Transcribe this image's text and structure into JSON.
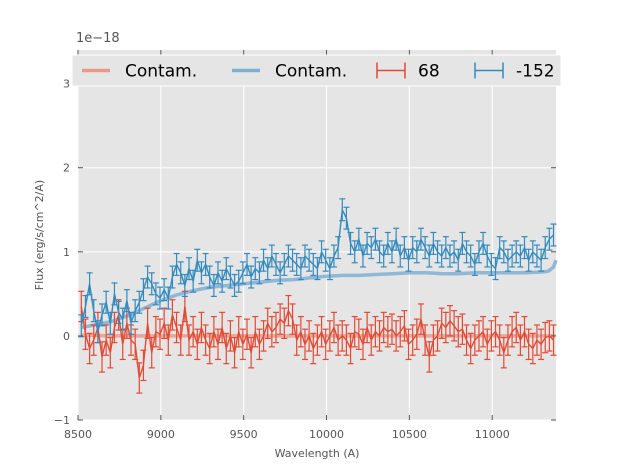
{
  "chart_data": {
    "type": "line",
    "title": "",
    "xlabel": "Wavelength (A)",
    "ylabel": "Flux (erg/s/cm^2/A)",
    "y_offset_label": "1e−18",
    "xlim": [
      8500,
      11385
    ],
    "ylim": [
      -1,
      3.4
    ],
    "xticks": [
      8500,
      9000,
      9500,
      10000,
      10500,
      11000
    ],
    "xtick_labels": [
      "8500",
      "9000",
      "9500",
      "10000",
      "10500",
      "11000"
    ],
    "yticks": [
      -1,
      0,
      1,
      2,
      3
    ],
    "ytick_labels": [
      "−1",
      "0",
      "1",
      "2",
      "3"
    ],
    "grid": true,
    "legend": {
      "placement": "top",
      "entries": [
        {
          "label": "Contam.",
          "kind": "line",
          "color": "#e8998d"
        },
        {
          "label": "Contam.",
          "kind": "line",
          "color": "#7fb0d4"
        },
        {
          "label": "68",
          "kind": "errorbar",
          "color": "#e24a33"
        },
        {
          "label": "-152",
          "kind": "errorbar",
          "color": "#348abd"
        }
      ]
    },
    "colors": {
      "red": "#e24a33",
      "blue": "#348abd",
      "red_contam": "#e8998d",
      "blue_contam": "#7fb0d4",
      "axes_bg": "#e5e5e5",
      "grid": "#ffffff"
    },
    "x": [
      8520,
      8545,
      8570,
      8595,
      8620,
      8645,
      8670,
      8695,
      8720,
      8745,
      8770,
      8795,
      8820,
      8845,
      8870,
      8895,
      8920,
      8945,
      8970,
      8995,
      9020,
      9045,
      9070,
      9095,
      9120,
      9145,
      9170,
      9195,
      9220,
      9245,
      9270,
      9295,
      9320,
      9345,
      9370,
      9395,
      9420,
      9445,
      9470,
      9495,
      9520,
      9545,
      9570,
      9595,
      9620,
      9645,
      9670,
      9695,
      9720,
      9745,
      9770,
      9795,
      9820,
      9845,
      9870,
      9895,
      9920,
      9945,
      9970,
      9995,
      10020,
      10045,
      10070,
      10095,
      10120,
      10145,
      10170,
      10195,
      10220,
      10245,
      10270,
      10295,
      10320,
      10345,
      10370,
      10395,
      10420,
      10445,
      10470,
      10495,
      10520,
      10545,
      10570,
      10595,
      10620,
      10645,
      10670,
      10695,
      10720,
      10745,
      10770,
      10795,
      10820,
      10845,
      10870,
      10895,
      10920,
      10945,
      10970,
      10995,
      11020,
      11045,
      11070,
      11095,
      11120,
      11145,
      11170,
      11195,
      11220,
      11245,
      11270,
      11295,
      11320,
      11345,
      11370
    ],
    "series": [
      {
        "name": "68",
        "kind": "errorbar",
        "color": "#e24a33",
        "y": [
          0.35,
          0.02,
          -0.15,
          -0.05,
          0.1,
          -0.25,
          -0.05,
          -0.2,
          0.1,
          0.25,
          -0.1,
          0.15,
          -0.05,
          -0.1,
          -0.5,
          -0.35,
          0.15,
          -0.2,
          0.05,
          0.02,
          0.15,
          -0.05,
          0.25,
          0.1,
          -0.05,
          0.35,
          -0.05,
          0.05,
          -0.1,
          0.1,
          -0.05,
          -0.15,
          0.05,
          -0.1,
          0.1,
          -0.15,
          0.0,
          -0.2,
          0.05,
          -0.1,
          0.02,
          -0.2,
          0.05,
          -0.1,
          0.0,
          0.15,
          0.05,
          0.1,
          0.2,
          0.15,
          0.3,
          0.2,
          -0.05,
          0.05,
          -0.1,
          0.0,
          -0.15,
          -0.05,
          0.05,
          -0.1,
          0.0,
          0.1,
          -0.05,
          0.0,
          -0.05,
          -0.15,
          0.05,
          0.02,
          -0.1,
          0.1,
          -0.05,
          0.05,
          0.0,
          0.1,
          0.05,
          0.08,
          0.0,
          0.05,
          0.12,
          -0.1,
          -0.05,
          0.02,
          0.2,
          -0.05,
          -0.25,
          -0.05,
          0.0,
          0.15,
          0.1,
          0.18,
          0.12,
          0.05,
          0.08,
          -0.05,
          -0.15,
          -0.05,
          0.0,
          0.05,
          -0.1,
          0.0,
          0.05,
          -0.05,
          -0.2,
          -0.05,
          0.05,
          0.1,
          -0.05,
          0.05,
          -0.1,
          -0.15,
          -0.05,
          -0.1,
          -0.02,
          0.0,
          -0.05
        ],
        "yerr": 0.18
      },
      {
        "name": "-152",
        "kind": "errorbar",
        "color": "#348abd",
        "y": [
          0.12,
          0.35,
          0.62,
          0.3,
          0.05,
          0.25,
          0.4,
          0.15,
          0.5,
          0.28,
          0.2,
          0.42,
          0.15,
          0.3,
          0.4,
          0.55,
          0.7,
          0.62,
          0.5,
          0.45,
          0.55,
          0.45,
          0.7,
          0.85,
          0.75,
          0.6,
          0.8,
          0.65,
          0.9,
          0.75,
          0.85,
          0.7,
          0.6,
          0.75,
          0.65,
          0.8,
          0.7,
          0.6,
          0.65,
          0.75,
          0.85,
          0.7,
          0.8,
          0.75,
          0.9,
          0.8,
          0.95,
          0.85,
          0.75,
          0.85,
          0.95,
          0.9,
          0.85,
          0.8,
          0.95,
          0.9,
          0.85,
          0.8,
          1.0,
          0.9,
          0.8,
          0.95,
          1.05,
          1.5,
          1.4,
          1.1,
          1.0,
          1.15,
          0.95,
          1.1,
          1.05,
          1.15,
          1.0,
          0.95,
          1.1,
          1.0,
          1.15,
          0.95,
          1.05,
          0.9,
          1.05,
          1.0,
          1.15,
          1.05,
          0.95,
          1.1,
          1.0,
          0.95,
          1.05,
          0.95,
          1.0,
          0.9,
          1.1,
          1.0,
          0.95,
          0.85,
          1.0,
          1.1,
          0.95,
          0.85,
          0.8,
          1.05,
          1.0,
          0.9,
          0.95,
          1.0,
          0.95,
          1.05,
          0.9,
          1.0,
          0.95,
          0.9,
          1.05,
          1.15,
          1.2
        ],
        "yerr": 0.13
      },
      {
        "name": "Contam.",
        "kind": "line",
        "color": "#e8998d",
        "x": [
          8520,
          8700,
          9000,
          9500,
          10000,
          10500,
          11000,
          11380
        ],
        "y": [
          0.01,
          0.0,
          0.0,
          0.0,
          0.0,
          0.0,
          0.0,
          0.0
        ]
      },
      {
        "name": "Contam.",
        "kind": "line",
        "color": "#7fb0d4",
        "x": [
          8520,
          8600,
          8700,
          8800,
          8900,
          9000,
          9100,
          9200,
          9300,
          9400,
          9500,
          9600,
          9700,
          9800,
          9900,
          10000,
          10100,
          10200,
          10300,
          10400,
          10500,
          10600,
          10700,
          10800,
          10900,
          11000,
          11100,
          11200,
          11300,
          11340,
          11370,
          11385
        ],
        "y": [
          0.1,
          0.13,
          0.17,
          0.24,
          0.33,
          0.42,
          0.49,
          0.54,
          0.58,
          0.6,
          0.62,
          0.64,
          0.66,
          0.67,
          0.69,
          0.71,
          0.72,
          0.72,
          0.73,
          0.74,
          0.75,
          0.75,
          0.74,
          0.74,
          0.75,
          0.75,
          0.75,
          0.75,
          0.76,
          0.77,
          0.82,
          0.9
        ]
      }
    ]
  }
}
